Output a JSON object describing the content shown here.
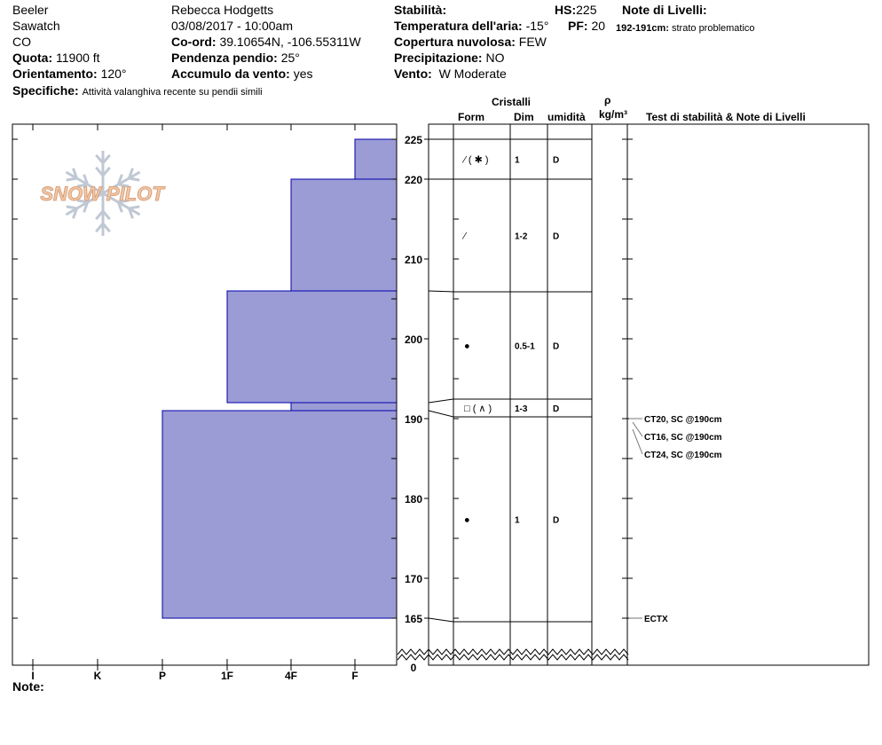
{
  "header": {
    "location": "Beeler",
    "range": "Sawatch",
    "state": "CO",
    "elevation_label": "Quota:",
    "elevation": "11900 ft",
    "aspect_label": "Orientamento:",
    "aspect": "120°",
    "observer": "Rebecca Hodgetts",
    "datetime": "03/08/2017 - 10:00am",
    "coord_label": "Co-ord:",
    "coord": "39.10654N, -106.55311W",
    "slope_label": "Pendenza pendio:",
    "slope": "25°",
    "wind_load_label": "Accumulo da vento:",
    "wind_load": "yes",
    "stability_label": "Stabilità:",
    "stability": "",
    "air_temp_label": "Temperatura dell'aria:",
    "air_temp": "-15°",
    "sky_label": "Copertura nuvolosa:",
    "sky": "FEW",
    "precip_label": "Precipitazione:",
    "precip": "NO",
    "wind_label": "Vento:",
    "wind": "W Moderate",
    "hs_label": "HS:",
    "hs": "225",
    "pf_label": "PF:",
    "pf": "20",
    "layer_notes_label": "Note di Livelli:",
    "layer_note_range": "192-191cm:",
    "layer_note": "strato problematico",
    "specifics_label": "Specifiche:",
    "specifics": "Attività valanghiva recente su pendii simili"
  },
  "columns": {
    "crystals": "Cristalli",
    "form": "Form",
    "size": "Dim",
    "moisture": "umidità",
    "rho": "ρ",
    "density": "kg/m³",
    "tests": "Test di stabilità & Note di Livelli"
  },
  "hardness_labels": [
    "I",
    "K",
    "P",
    "1F",
    "4F",
    "F"
  ],
  "depth_ticks": [
    "225",
    "220",
    "210",
    "200",
    "190",
    "180",
    "170",
    "165",
    "0"
  ],
  "layers": [
    {
      "top": 225,
      "bottom": 220,
      "hardness": "F",
      "form": "⁄ ( ✱ )",
      "size": "1",
      "moisture": "D"
    },
    {
      "top": 220,
      "bottom": 206,
      "hardness": "4F",
      "form": "⁄",
      "size": "1-2",
      "moisture": "D"
    },
    {
      "top": 206,
      "bottom": 192,
      "hardness": "1F",
      "form": "●",
      "size": "0.5-1",
      "moisture": "D"
    },
    {
      "top": 192,
      "bottom": 191,
      "hardness": "4F",
      "form": "□ ( ∧ )",
      "size": "1-3",
      "moisture": "D"
    },
    {
      "top": 191,
      "bottom": 165,
      "hardness": "P",
      "form": "●",
      "size": "1",
      "moisture": "D"
    }
  ],
  "tests": [
    "CT20, SC @190cm",
    "CT16, SC @190cm",
    "CT24, SC @190cm",
    "ECTX"
  ],
  "note_label": "Note:",
  "logo": "SNOW PILOT",
  "colors": {
    "bar": "#9b9bd6",
    "bar_edge": "#0000aa"
  }
}
